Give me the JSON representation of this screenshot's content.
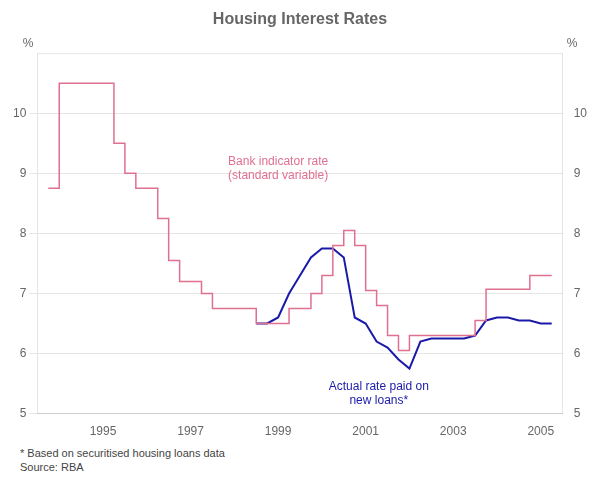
{
  "chart_data": {
    "type": "line",
    "title": "Housing Interest Rates",
    "ylabel": "%",
    "y2label": "%",
    "xlim": [
      1993.5,
      2005.5
    ],
    "xticks": [
      1995,
      1997,
      1999,
      2001,
      2003,
      2005
    ],
    "ylim": [
      5,
      11
    ],
    "yticks": [
      5,
      6,
      7,
      8,
      9,
      10
    ],
    "y2lim": [
      5,
      11
    ],
    "y2ticks": [
      5,
      6,
      7,
      8,
      9,
      10
    ],
    "grid": "y",
    "series": [
      {
        "type": "step",
        "color": "#e07090",
        "x": [
          1993.75,
          1994.0,
          1994.0,
          1994.5,
          1994.5,
          1995.25,
          1995.25,
          1995.5,
          1995.5,
          1995.75,
          1995.75,
          1996.25,
          1996.25,
          1996.5,
          1996.5,
          1996.75,
          1996.75,
          1997.25,
          1997.25,
          1997.5,
          1997.5,
          1998.0,
          1998.0,
          1998.25,
          1998.5,
          1998.75,
          1999.0,
          1999.25,
          1999.5,
          1999.75,
          2000.0,
          2000.25,
          2000.25,
          2000.5,
          2000.5,
          2000.75,
          2000.75,
          2001.0,
          2001.0,
          2001.25,
          2001.25,
          2001.5,
          2001.5,
          2001.75,
          2001.75,
          2002.0,
          2002.0,
          2002.5,
          2002.5,
          2003.5,
          2003.5,
          2003.75,
          2003.75,
          2004.0,
          2004.0,
          2004.75,
          2004.75,
          2005.25
        ],
        "values": [
          8.75,
          8.75,
          10.5,
          10.5,
          10.5,
          10.5,
          9.5,
          9.5,
          9.0,
          9.0,
          8.75,
          8.75,
          8.25,
          8.25,
          7.55,
          7.55,
          7.2,
          7.2,
          7.0,
          7.0,
          6.75,
          6.75,
          6.75,
          6.75,
          6.5,
          6.5,
          6.5,
          6.75,
          6.75,
          7.0,
          7.3,
          7.3,
          7.8,
          7.8,
          8.05,
          8.05,
          7.8,
          7.8,
          7.05,
          7.05,
          6.8,
          6.8,
          6.3,
          6.3,
          6.05,
          6.05,
          6.3,
          6.3,
          6.3,
          6.3,
          6.55,
          6.55,
          7.07,
          7.07,
          7.07,
          7.07,
          7.3,
          7.3
        ]
      },
      {
        "type": "line",
        "color": "#1a1aaa",
        "x": [
          1998.5,
          1998.75,
          1999.0,
          1999.25,
          1999.5,
          1999.75,
          2000.0,
          2000.25,
          2000.5,
          2000.75,
          2001.0,
          2001.25,
          2001.5,
          2001.75,
          2002.0,
          2002.25,
          2002.5,
          2002.75,
          2003.0,
          2003.25,
          2003.5,
          2003.75,
          2004.0,
          2004.25,
          2004.5,
          2004.75,
          2005.0,
          2005.25
        ],
        "values": [
          6.5,
          6.5,
          6.6,
          7.0,
          7.3,
          7.6,
          7.75,
          7.75,
          7.6,
          6.6,
          6.5,
          6.2,
          6.1,
          5.9,
          5.75,
          6.2,
          6.25,
          6.25,
          6.25,
          6.25,
          6.3,
          6.55,
          6.6,
          6.6,
          6.55,
          6.55,
          6.5,
          6.5
        ]
      }
    ],
    "annotations": [
      {
        "text": "Bank indicator rate\n(standard variable)",
        "x": 1999.0,
        "y": 9.3,
        "color": "#e07090"
      },
      {
        "text": "Actual rate paid on\nnew loans*",
        "x": 2001.3,
        "y": 5.55,
        "color": "#1a1aaa"
      }
    ],
    "footnote": "*  Based on securitised housing loans data\nSource: RBA"
  }
}
